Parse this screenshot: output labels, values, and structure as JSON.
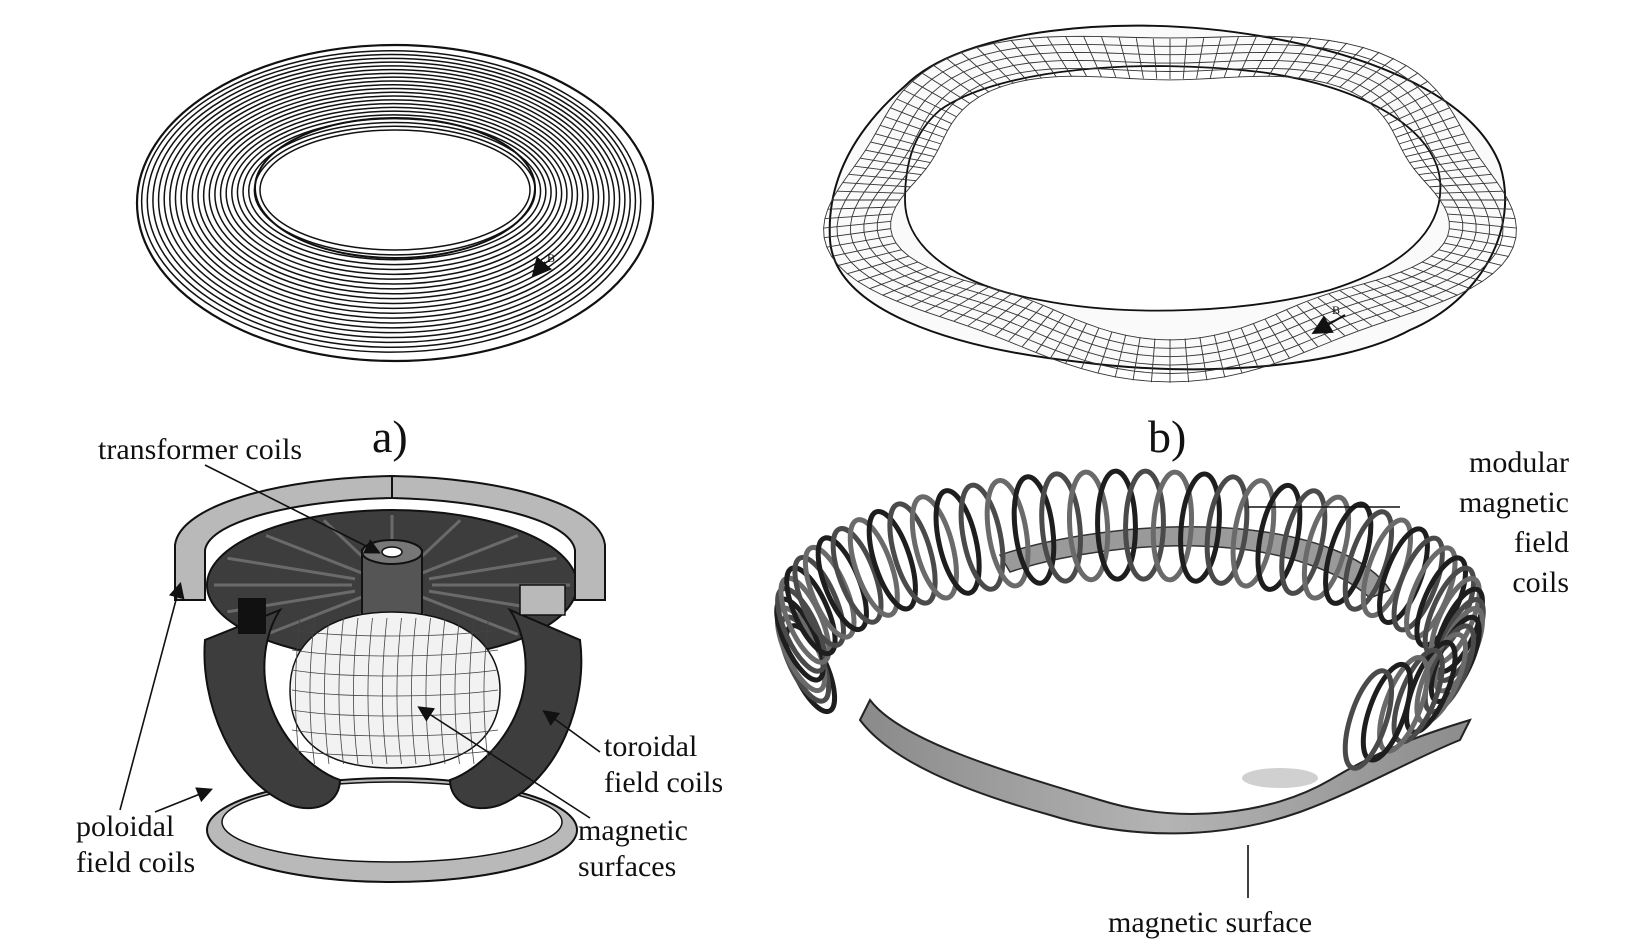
{
  "panels": {
    "a_label": "a)",
    "b_label": "b)"
  },
  "field_arrow_label": "B",
  "tokamak": {
    "transformer": "transformer coils",
    "toroidal_1": "toroidal",
    "toroidal_2": "field coils",
    "poloidal_1": "poloidal",
    "poloidal_2": "field coils",
    "magnetic_1": "magnetic",
    "magnetic_2": "surfaces"
  },
  "stellarator": {
    "modular_1": "modular",
    "modular_2": "magnetic",
    "modular_3": "field",
    "modular_4": "coils",
    "surface": "magnetic surface"
  },
  "colors": {
    "line": "#111111",
    "dark_coil": "#3d3d3d",
    "mid_coil": "#7a7a7a",
    "light_ring": "#b9b9b9",
    "plasma": "#f2f2f2"
  }
}
